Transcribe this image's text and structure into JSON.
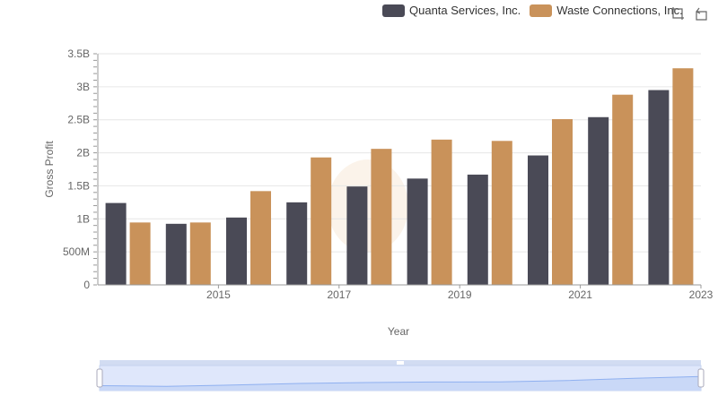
{
  "colors": {
    "quanta": "#4a4a56",
    "waste": "#c9925a",
    "grid": "#e6e6e6",
    "axis": "#666666",
    "zoom_fill": "#dfe7fb",
    "zoom_line": "#8fb0f0"
  },
  "toolbox": {
    "zoom_icon": "zoom-icon",
    "restore_icon": "restore-icon"
  },
  "chart_data": {
    "type": "bar",
    "xlabel": "Year",
    "ylabel": "Gross Profit",
    "ylim": [
      0,
      3500000000
    ],
    "y_ticks": [
      "0",
      "500M",
      "1B",
      "1.5B",
      "2B",
      "2.5B",
      "3B",
      "3.5B"
    ],
    "x": [
      2014,
      2015,
      2016,
      2017,
      2018,
      2019,
      2020,
      2021,
      2022,
      2023
    ],
    "x_tick_labels": [
      "2015",
      "2017",
      "2019",
      "2021",
      "2023"
    ],
    "legend_position": "top-right",
    "grid": true,
    "series": [
      {
        "name": "Quanta Services, Inc.",
        "values": [
          1240000000,
          925000000,
          1020000000,
          1250000000,
          1490000000,
          1610000000,
          1670000000,
          1960000000,
          2540000000,
          2950000000
        ]
      },
      {
        "name": "Waste Connections, Inc.",
        "values": [
          945000000,
          945000000,
          1420000000,
          1930000000,
          2060000000,
          2200000000,
          2180000000,
          2510000000,
          2880000000,
          3280000000
        ]
      }
    ]
  }
}
